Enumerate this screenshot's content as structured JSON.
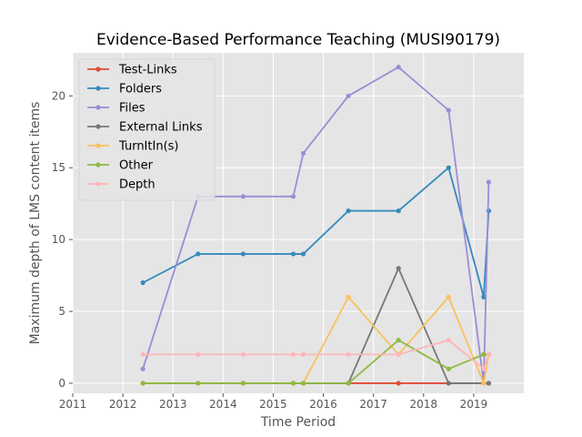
{
  "chart_data": {
    "type": "line",
    "title": "Evidence-Based Performance Teaching (MUSI90179)",
    "xlabel": "Time Period",
    "ylabel": "Maximum depth of LMS content items",
    "xlim": [
      2011.0,
      2020.0
    ],
    "ylim": [
      -0.7,
      23.0
    ],
    "xticks": [
      2011,
      2012,
      2013,
      2014,
      2015,
      2016,
      2017,
      2018,
      2019
    ],
    "yticks": [
      0,
      5,
      10,
      15,
      20
    ],
    "grid": true,
    "legend_position": "top-left",
    "x": [
      2012.4,
      2013.5,
      2014.4,
      2015.4,
      2015.6,
      2016.5,
      2017.5,
      2018.5,
      2019.2,
      2019.3
    ],
    "series": [
      {
        "name": "Test-Links",
        "color": "#E24A33",
        "values": [
          0,
          0,
          0,
          0,
          0,
          0,
          0,
          0,
          0,
          0
        ]
      },
      {
        "name": "Folders",
        "color": "#348ABD",
        "values": [
          7,
          9,
          9,
          9,
          9,
          12,
          12,
          15,
          6,
          12
        ]
      },
      {
        "name": "Files",
        "color": "#988ED5",
        "values": [
          1,
          13,
          13,
          13,
          16,
          20,
          22,
          19,
          0,
          14
        ]
      },
      {
        "name": "External Links",
        "color": "#777777",
        "values": [
          0,
          0,
          0,
          0,
          0,
          0,
          8,
          0,
          0,
          0
        ]
      },
      {
        "name": "TurnItIn(s)",
        "color": "#FBC15E",
        "values": [
          0,
          0,
          0,
          0,
          0,
          6,
          2,
          6,
          0,
          2
        ]
      },
      {
        "name": "Other",
        "color": "#8EBA42",
        "values": [
          0,
          0,
          0,
          0,
          0,
          0,
          3,
          1,
          2,
          2
        ]
      },
      {
        "name": "Depth",
        "color": "#FFB5B8",
        "values": [
          2,
          2,
          2,
          2,
          2,
          2,
          2,
          3,
          1,
          2
        ]
      }
    ]
  }
}
